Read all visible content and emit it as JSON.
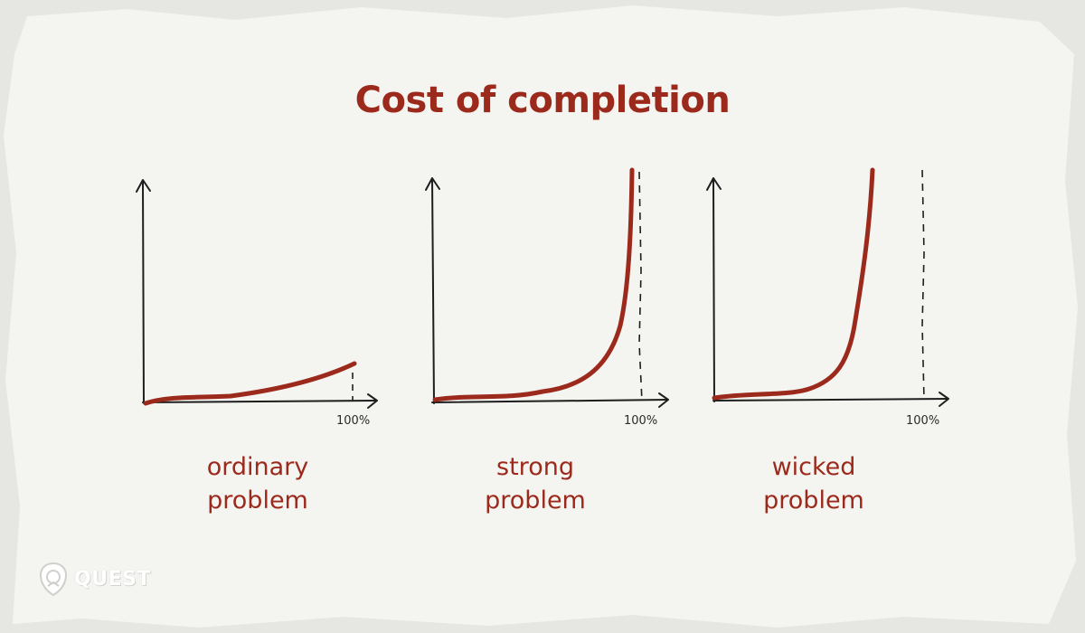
{
  "title": "Cost of completion",
  "colors": {
    "accent": "#9c2a1c",
    "axis": "#1e1e1e",
    "paper": "#f4f4f1",
    "background": "#e6e6e2"
  },
  "panels": [
    {
      "caption_line1": "ordinary",
      "caption_line2": "problem",
      "x_mark_label": "100%"
    },
    {
      "caption_line1": "strong",
      "caption_line2": "problem",
      "x_mark_label": "100%"
    },
    {
      "caption_line1": "wicked",
      "caption_line2": "problem",
      "x_mark_label": "100%"
    }
  ],
  "logo": {
    "text": "QUEST",
    "icon": "shield-crest-icon"
  }
}
